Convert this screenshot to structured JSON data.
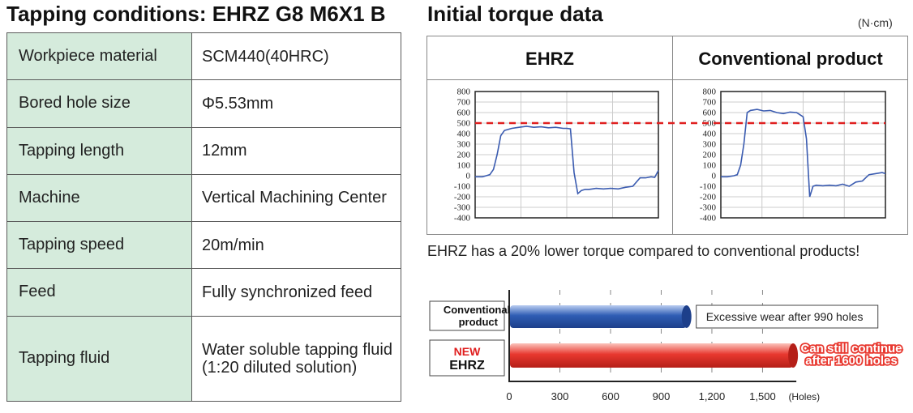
{
  "left_title": "Tapping conditions: EHRZ G8 M6X1 B",
  "conditions": [
    {
      "label": "Workpiece material",
      "value": [
        "SCM440(40HRC)"
      ]
    },
    {
      "label": "Bored hole size",
      "value": [
        "Φ5.53mm"
      ]
    },
    {
      "label": "Tapping length",
      "value": [
        "12mm"
      ]
    },
    {
      "label": "Machine",
      "value": [
        "Vertical Machining Center"
      ]
    },
    {
      "label": "Tapping speed",
      "value": [
        "20m/min"
      ]
    },
    {
      "label": "Feed",
      "value": [
        "Fully synchronized feed"
      ]
    },
    {
      "label": "Tapping fluid",
      "value": [
        "Water soluble tapping fluid",
        "(1:20 diluted solution)"
      ]
    }
  ],
  "right_title": "Initial torque data",
  "unit": "(N·cm)",
  "comparison_text": "EHRZ has a 20% lower torque compared to conventional products!",
  "colors": {
    "table_label_bg": "#d5ebdc",
    "trace": "#3a5bb0",
    "reference_line": "#e02020",
    "bar_conventional": "#2f5db4",
    "bar_new": "#e8382f",
    "new_label": "#e02020"
  },
  "chart_data": [
    {
      "type": "line",
      "title": "EHRZ",
      "ylim": [
        -400,
        800
      ],
      "yticks": [
        "800",
        "700",
        "600",
        "500",
        "400",
        "300",
        "200",
        "100",
        "0",
        "-100",
        "-200",
        "-300",
        "-400"
      ],
      "reference_line": 500,
      "grid": true,
      "series": [
        {
          "x": [
            0,
            4,
            6,
            8,
            10,
            12,
            14,
            16,
            20,
            24,
            28,
            32,
            36,
            40,
            44,
            48,
            50,
            52,
            54,
            56,
            58,
            60,
            62,
            64,
            66,
            70,
            74,
            78,
            82,
            86,
            90,
            93,
            96,
            98,
            100
          ],
          "y": [
            -10,
            -10,
            0,
            10,
            60,
            200,
            380,
            430,
            450,
            460,
            470,
            460,
            465,
            455,
            460,
            450,
            450,
            445,
            30,
            -170,
            -140,
            -130,
            -130,
            -125,
            -120,
            -125,
            -120,
            -125,
            -110,
            -100,
            -20,
            -20,
            -10,
            -15,
            50
          ]
        }
      ]
    },
    {
      "type": "line",
      "title": "Conventional product",
      "ylim": [
        -400,
        800
      ],
      "yticks": [
        "800",
        "700",
        "600",
        "500",
        "400",
        "300",
        "200",
        "100",
        "0",
        "-100",
        "-200",
        "-300",
        "-400"
      ],
      "reference_line": 500,
      "grid": true,
      "series": [
        {
          "x": [
            0,
            4,
            8,
            10,
            12,
            14,
            16,
            18,
            22,
            26,
            30,
            34,
            38,
            42,
            46,
            48,
            50,
            52,
            54,
            56,
            58,
            62,
            66,
            70,
            74,
            78,
            82,
            86,
            90,
            94,
            98,
            100
          ],
          "y": [
            -10,
            -10,
            0,
            10,
            100,
            300,
            600,
            620,
            630,
            615,
            620,
            600,
            590,
            605,
            600,
            580,
            560,
            350,
            -200,
            -100,
            -90,
            -95,
            -90,
            -95,
            -80,
            -100,
            -60,
            -50,
            10,
            20,
            30,
            20
          ]
        }
      ]
    },
    {
      "type": "bar",
      "orientation": "horizontal",
      "categories": [
        [
          "Conventional",
          "product"
        ],
        [
          "NEW",
          "EHRZ"
        ]
      ],
      "values": [
        990,
        1600
      ],
      "bar_ends": [
        1050,
        1700
      ],
      "xticks": [
        "0",
        "300",
        "600",
        "900",
        "1,200",
        "1,500"
      ],
      "xtick_values": [
        0,
        300,
        600,
        900,
        1200,
        1500
      ],
      "xlim": [
        0,
        1700
      ],
      "xlabel": "(Holes)",
      "annotations": [
        [
          "Excessive wear after 990 holes"
        ],
        [
          "Can still continue",
          "after 1600 holes"
        ]
      ]
    }
  ]
}
